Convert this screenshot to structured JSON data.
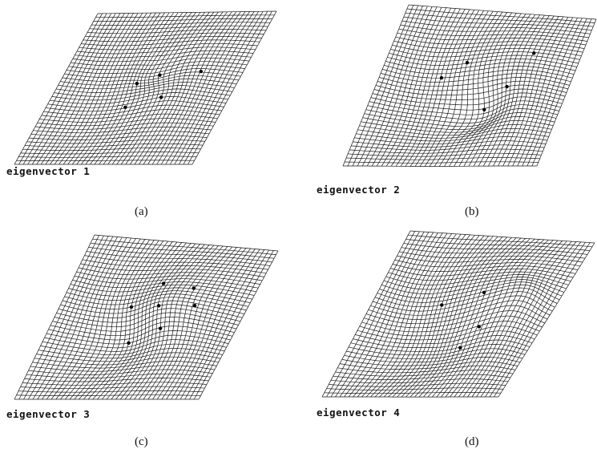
{
  "figure": {
    "panels": [
      {
        "caption": "eigenvector 1",
        "label": "(a)"
      },
      {
        "caption": "eigenvector 2",
        "label": "(b)"
      },
      {
        "caption": "eigenvector 3",
        "label": "(c)"
      },
      {
        "caption": "eigenvector 4",
        "label": "(d)"
      }
    ]
  }
}
